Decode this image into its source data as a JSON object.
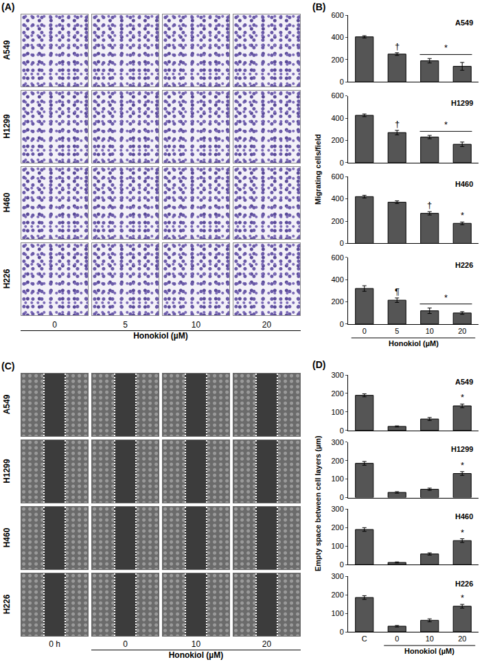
{
  "chart_data": [
    {
      "type": "bar",
      "title": "A549",
      "categories": [
        "0",
        "5",
        "10",
        "20"
      ],
      "values": [
        405,
        250,
        190,
        140
      ],
      "errors": [
        10,
        12,
        20,
        35
      ],
      "color": "#555555",
      "ylim": [
        0,
        600
      ],
      "yticks": [
        0,
        200,
        400,
        600
      ],
      "grid": false,
      "tick_labels": "y",
      "significance": [
        {
          "label": "†",
          "categories": [
            "5"
          ]
        },
        {
          "label": "*",
          "categories": [
            "10",
            "20"
          ]
        }
      ]
    },
    {
      "type": "bar",
      "title": "H1299",
      "categories": [
        "0",
        "5",
        "10",
        "20"
      ],
      "values": [
        425,
        270,
        230,
        165
      ],
      "errors": [
        12,
        20,
        15,
        20
      ],
      "color": "#555555",
      "ylim": [
        0,
        600
      ],
      "yticks": [
        0,
        200,
        400,
        600
      ],
      "grid": false,
      "tick_labels": "y",
      "significance": [
        {
          "label": "†",
          "categories": [
            "5"
          ]
        },
        {
          "label": "*",
          "categories": [
            "10",
            "20"
          ]
        }
      ]
    },
    {
      "type": "bar",
      "title": "H460",
      "categories": [
        "0",
        "5",
        "10",
        "20"
      ],
      "values": [
        420,
        370,
        270,
        180
      ],
      "errors": [
        12,
        12,
        15,
        12
      ],
      "color": "#555555",
      "ylim": [
        0,
        600
      ],
      "yticks": [
        0,
        200,
        400,
        600
      ],
      "grid": false,
      "tick_labels": "y",
      "significance": [
        {
          "label": "†",
          "categories": [
            "10"
          ]
        },
        {
          "label": "*",
          "categories": [
            "20"
          ]
        }
      ]
    },
    {
      "type": "bar",
      "title": "H226",
      "categories": [
        "0",
        "5",
        "10",
        "20"
      ],
      "values": [
        320,
        215,
        120,
        100
      ],
      "errors": [
        25,
        20,
        25,
        12
      ],
      "color": "#555555",
      "ylim": [
        0,
        600
      ],
      "yticks": [
        0,
        200,
        400,
        600
      ],
      "grid": false,
      "significance": [
        {
          "label": "¶",
          "categories": [
            "5"
          ]
        },
        {
          "label": "*",
          "categories": [
            "10",
            "20"
          ]
        }
      ]
    },
    {
      "type": "bar",
      "title": "A549",
      "categories": [
        "C",
        "0",
        "10",
        "20"
      ],
      "values": [
        190,
        22,
        62,
        133
      ],
      "errors": [
        8,
        3,
        8,
        10
      ],
      "color": "#555555",
      "ylim": [
        0,
        300
      ],
      "yticks": [
        0,
        100,
        200,
        300
      ],
      "grid": false,
      "tick_labels": "y",
      "significance": [
        {
          "label": "*",
          "categories": [
            "20"
          ]
        }
      ]
    },
    {
      "type": "bar",
      "title": "H1299",
      "categories": [
        "C",
        "0",
        "10",
        "20"
      ],
      "values": [
        185,
        28,
        45,
        130
      ],
      "errors": [
        10,
        4,
        6,
        10
      ],
      "color": "#555555",
      "ylim": [
        0,
        300
      ],
      "yticks": [
        0,
        100,
        200,
        300
      ],
      "grid": false,
      "tick_labels": "y",
      "significance": [
        {
          "label": "*",
          "categories": [
            "20"
          ]
        }
      ]
    },
    {
      "type": "bar",
      "title": "H460",
      "categories": [
        "C",
        "0",
        "10",
        "20"
      ],
      "values": [
        190,
        12,
        58,
        130
      ],
      "errors": [
        10,
        3,
        6,
        10
      ],
      "color": "#555555",
      "ylim": [
        0,
        300
      ],
      "yticks": [
        0,
        100,
        200,
        300
      ],
      "grid": false,
      "tick_labels": "y",
      "significance": [
        {
          "label": "*",
          "categories": [
            "20"
          ]
        }
      ]
    },
    {
      "type": "bar",
      "title": "H226",
      "categories": [
        "C",
        "0",
        "10",
        "20"
      ],
      "values": [
        185,
        30,
        62,
        138
      ],
      "errors": [
        10,
        4,
        8,
        10
      ],
      "color": "#555555",
      "ylim": [
        0,
        300
      ],
      "yticks": [
        0,
        100,
        200,
        300
      ],
      "grid": false,
      "significance": [
        {
          "label": "*",
          "categories": [
            "20"
          ]
        }
      ]
    }
  ],
  "figure": {
    "A": {
      "label": "(A)",
      "rows": [
        "A549",
        "H1299",
        "H460",
        "H226"
      ],
      "columns": [
        "0",
        "5",
        "10",
        "20"
      ],
      "x_label": "Honokiol (µM)",
      "x_label_span": [
        "0",
        "5",
        "10",
        "20"
      ]
    },
    "B": {
      "label": "(B)",
      "y_label": "Migrating cells/field",
      "x_label": "Honokiol (µM)",
      "x_label_span": [
        "0",
        "5",
        "10",
        "20"
      ]
    },
    "C": {
      "label": "(C)",
      "rows": [
        "A549",
        "H1299",
        "H460",
        "H226"
      ],
      "columns": [
        "0 h",
        "0",
        "10",
        "20"
      ],
      "x_label": "Honokiol (µM)",
      "x_label_span": [
        "0",
        "10",
        "20"
      ]
    },
    "D": {
      "label": "(D)",
      "y_label": "Empty space between cell layers (µm)",
      "x_label": "Honokiol (µM)",
      "x_label_span": [
        "0",
        "10",
        "20"
      ]
    }
  }
}
